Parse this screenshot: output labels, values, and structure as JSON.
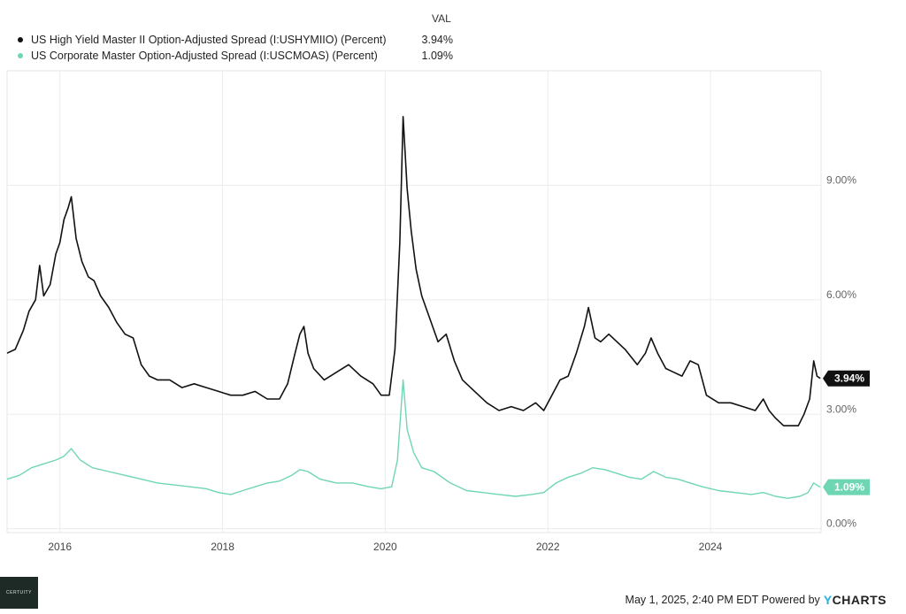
{
  "legend": {
    "header": "VAL",
    "items": [
      {
        "label": "US High Yield Master II Option-Adjusted Spread (I:USHYMIIO) (Percent)",
        "value": "3.94%",
        "color": "#111111"
      },
      {
        "label": "US Corporate Master Option-Adjusted Spread (I:USCMOAS) (Percent)",
        "value": "1.09%",
        "color": "#6fd6b4"
      }
    ]
  },
  "footer": {
    "timestamp": "May 1, 2025, 2:40 PM EDT",
    "powered_by": "Powered by",
    "brand_y": "Y",
    "brand_rest": "CHARTS",
    "logo_text": "CERTUITY"
  },
  "chart_data": {
    "type": "line",
    "x_ticks": [
      "2016",
      "2018",
      "2020",
      "2022",
      "2024"
    ],
    "y_ticks": [
      "9.00%",
      "6.00%",
      "3.00%",
      "0.00%"
    ],
    "y_tick_values": [
      9,
      6,
      3,
      0
    ],
    "ylim": [
      -0.1,
      12
    ],
    "xlim": [
      2015.35,
      2025.36
    ],
    "grid": true,
    "legend_position": "top-left",
    "series": [
      {
        "name": "US High Yield Master II Option-Adjusted Spread (I:USHYMIIO) (Percent)",
        "color": "#111111",
        "end_label": "3.94%",
        "points": [
          [
            2015.35,
            4.6
          ],
          [
            2015.45,
            4.7
          ],
          [
            2015.55,
            5.2
          ],
          [
            2015.62,
            5.7
          ],
          [
            2015.7,
            6.0
          ],
          [
            2015.75,
            6.9
          ],
          [
            2015.8,
            6.1
          ],
          [
            2015.88,
            6.4
          ],
          [
            2015.95,
            7.2
          ],
          [
            2016.0,
            7.5
          ],
          [
            2016.05,
            8.1
          ],
          [
            2016.1,
            8.4
          ],
          [
            2016.14,
            8.7
          ],
          [
            2016.2,
            7.6
          ],
          [
            2016.27,
            7.0
          ],
          [
            2016.35,
            6.6
          ],
          [
            2016.42,
            6.5
          ],
          [
            2016.5,
            6.1
          ],
          [
            2016.6,
            5.8
          ],
          [
            2016.7,
            5.4
          ],
          [
            2016.8,
            5.1
          ],
          [
            2016.9,
            5.0
          ],
          [
            2017.0,
            4.3
          ],
          [
            2017.1,
            4.0
          ],
          [
            2017.2,
            3.9
          ],
          [
            2017.35,
            3.9
          ],
          [
            2017.5,
            3.7
          ],
          [
            2017.65,
            3.8
          ],
          [
            2017.8,
            3.7
          ],
          [
            2017.95,
            3.6
          ],
          [
            2018.1,
            3.5
          ],
          [
            2018.25,
            3.5
          ],
          [
            2018.4,
            3.6
          ],
          [
            2018.55,
            3.4
          ],
          [
            2018.7,
            3.4
          ],
          [
            2018.8,
            3.8
          ],
          [
            2018.88,
            4.5
          ],
          [
            2018.95,
            5.1
          ],
          [
            2019.0,
            5.3
          ],
          [
            2019.05,
            4.6
          ],
          [
            2019.12,
            4.2
          ],
          [
            2019.25,
            3.9
          ],
          [
            2019.4,
            4.1
          ],
          [
            2019.55,
            4.3
          ],
          [
            2019.7,
            4.0
          ],
          [
            2019.85,
            3.8
          ],
          [
            2019.95,
            3.5
          ],
          [
            2020.05,
            3.5
          ],
          [
            2020.12,
            4.7
          ],
          [
            2020.18,
            7.5
          ],
          [
            2020.22,
            10.8
          ],
          [
            2020.27,
            8.9
          ],
          [
            2020.32,
            7.8
          ],
          [
            2020.38,
            6.8
          ],
          [
            2020.45,
            6.1
          ],
          [
            2020.55,
            5.5
          ],
          [
            2020.65,
            4.9
          ],
          [
            2020.75,
            5.1
          ],
          [
            2020.85,
            4.4
          ],
          [
            2020.95,
            3.9
          ],
          [
            2021.1,
            3.6
          ],
          [
            2021.25,
            3.3
          ],
          [
            2021.4,
            3.1
          ],
          [
            2021.55,
            3.2
          ],
          [
            2021.7,
            3.1
          ],
          [
            2021.85,
            3.3
          ],
          [
            2021.95,
            3.1
          ],
          [
            2022.05,
            3.5
          ],
          [
            2022.15,
            3.9
          ],
          [
            2022.25,
            4.0
          ],
          [
            2022.35,
            4.6
          ],
          [
            2022.45,
            5.3
          ],
          [
            2022.5,
            5.8
          ],
          [
            2022.58,
            5.0
          ],
          [
            2022.65,
            4.9
          ],
          [
            2022.75,
            5.1
          ],
          [
            2022.85,
            4.9
          ],
          [
            2022.95,
            4.7
          ],
          [
            2023.1,
            4.3
          ],
          [
            2023.2,
            4.6
          ],
          [
            2023.27,
            5.0
          ],
          [
            2023.35,
            4.6
          ],
          [
            2023.45,
            4.2
          ],
          [
            2023.55,
            4.1
          ],
          [
            2023.65,
            4.0
          ],
          [
            2023.75,
            4.4
          ],
          [
            2023.85,
            4.3
          ],
          [
            2023.95,
            3.5
          ],
          [
            2024.1,
            3.3
          ],
          [
            2024.25,
            3.3
          ],
          [
            2024.4,
            3.2
          ],
          [
            2024.55,
            3.1
          ],
          [
            2024.65,
            3.4
          ],
          [
            2024.72,
            3.1
          ],
          [
            2024.8,
            2.9
          ],
          [
            2024.9,
            2.7
          ],
          [
            2025.0,
            2.7
          ],
          [
            2025.08,
            2.7
          ],
          [
            2025.15,
            3.0
          ],
          [
            2025.22,
            3.4
          ],
          [
            2025.27,
            4.4
          ],
          [
            2025.31,
            4.0
          ],
          [
            2025.35,
            3.94
          ]
        ]
      },
      {
        "name": "US Corporate Master Option-Adjusted Spread (I:USCMOAS) (Percent)",
        "color": "#6fd6b4",
        "end_label": "1.09%",
        "points": [
          [
            2015.35,
            1.3
          ],
          [
            2015.5,
            1.4
          ],
          [
            2015.65,
            1.6
          ],
          [
            2015.8,
            1.7
          ],
          [
            2015.95,
            1.8
          ],
          [
            2016.05,
            1.9
          ],
          [
            2016.14,
            2.1
          ],
          [
            2016.25,
            1.8
          ],
          [
            2016.4,
            1.6
          ],
          [
            2016.6,
            1.5
          ],
          [
            2016.8,
            1.4
          ],
          [
            2017.0,
            1.3
          ],
          [
            2017.2,
            1.2
          ],
          [
            2017.4,
            1.15
          ],
          [
            2017.6,
            1.1
          ],
          [
            2017.8,
            1.05
          ],
          [
            2017.95,
            0.95
          ],
          [
            2018.1,
            0.9
          ],
          [
            2018.25,
            1.0
          ],
          [
            2018.4,
            1.1
          ],
          [
            2018.55,
            1.2
          ],
          [
            2018.7,
            1.25
          ],
          [
            2018.85,
            1.4
          ],
          [
            2018.95,
            1.55
          ],
          [
            2019.05,
            1.5
          ],
          [
            2019.2,
            1.3
          ],
          [
            2019.4,
            1.2
          ],
          [
            2019.6,
            1.2
          ],
          [
            2019.8,
            1.1
          ],
          [
            2019.95,
            1.05
          ],
          [
            2020.08,
            1.1
          ],
          [
            2020.15,
            1.8
          ],
          [
            2020.22,
            3.9
          ],
          [
            2020.27,
            2.6
          ],
          [
            2020.35,
            2.0
          ],
          [
            2020.45,
            1.6
          ],
          [
            2020.6,
            1.5
          ],
          [
            2020.8,
            1.2
          ],
          [
            2021.0,
            1.0
          ],
          [
            2021.2,
            0.95
          ],
          [
            2021.4,
            0.9
          ],
          [
            2021.6,
            0.85
          ],
          [
            2021.8,
            0.9
          ],
          [
            2021.95,
            0.95
          ],
          [
            2022.1,
            1.2
          ],
          [
            2022.25,
            1.35
          ],
          [
            2022.4,
            1.45
          ],
          [
            2022.55,
            1.6
          ],
          [
            2022.7,
            1.55
          ],
          [
            2022.85,
            1.45
          ],
          [
            2023.0,
            1.35
          ],
          [
            2023.15,
            1.3
          ],
          [
            2023.3,
            1.5
          ],
          [
            2023.45,
            1.35
          ],
          [
            2023.6,
            1.3
          ],
          [
            2023.75,
            1.2
          ],
          [
            2023.9,
            1.1
          ],
          [
            2024.1,
            1.0
          ],
          [
            2024.3,
            0.95
          ],
          [
            2024.5,
            0.9
          ],
          [
            2024.65,
            0.95
          ],
          [
            2024.8,
            0.85
          ],
          [
            2024.95,
            0.8
          ],
          [
            2025.1,
            0.85
          ],
          [
            2025.2,
            0.95
          ],
          [
            2025.27,
            1.2
          ],
          [
            2025.35,
            1.09
          ]
        ]
      }
    ]
  }
}
